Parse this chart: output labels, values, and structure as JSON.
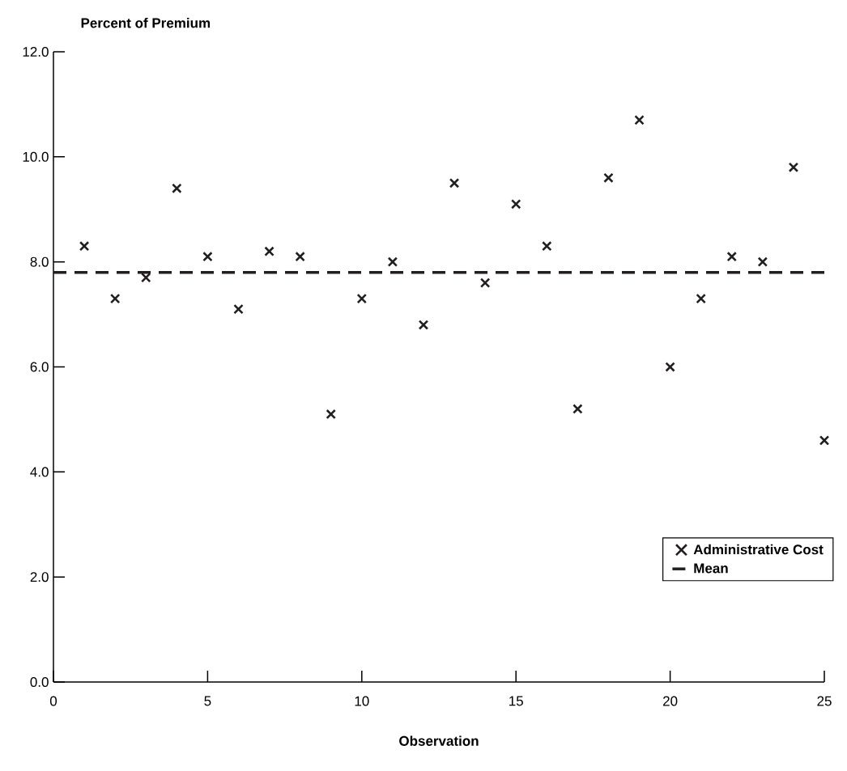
{
  "chart_data": {
    "type": "scatter",
    "ylabel": "Percent of Premium",
    "xlabel": "Observation",
    "x": [
      1,
      2,
      3,
      4,
      5,
      6,
      7,
      8,
      9,
      10,
      11,
      12,
      13,
      14,
      15,
      16,
      17,
      18,
      19,
      20,
      21,
      22,
      23,
      24,
      25
    ],
    "series": [
      {
        "name": "Administrative Cost",
        "color": "#231f20",
        "values": [
          8.3,
          7.3,
          7.7,
          9.4,
          8.1,
          7.1,
          8.2,
          8.1,
          5.1,
          7.3,
          8.0,
          6.8,
          9.5,
          7.6,
          9.1,
          8.3,
          5.2,
          9.6,
          10.7,
          6.0,
          7.3,
          8.1,
          8.0,
          9.8,
          4.6
        ]
      }
    ],
    "marker": "cross",
    "legend": "bottom right",
    "xlim": [
      0,
      25
    ],
    "ylim": [
      0,
      12
    ],
    "xticks": [
      0,
      5,
      10,
      15,
      20,
      25
    ],
    "yticks": [
      {
        "value": 0,
        "label": "0.0"
      },
      {
        "value": 2,
        "label": "2.0"
      },
      {
        "value": 4,
        "label": "4.0"
      },
      {
        "value": 6,
        "label": "6.0"
      },
      {
        "value": 8,
        "label": "8.0"
      },
      {
        "value": 10,
        "label": "10.0"
      },
      {
        "value": 12,
        "label": "12.0"
      }
    ],
    "ref_lines": [
      {
        "axis": "y",
        "value": 7.8,
        "label": "Mean",
        "color": "#231f20",
        "line_style": "dashed"
      }
    ]
  }
}
